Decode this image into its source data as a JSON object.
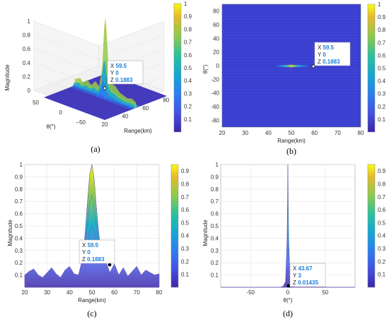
{
  "chart_data": [
    {
      "type": "surface3d",
      "caption": "(a)",
      "zlabel": "Magnitude",
      "xlabel": "Range(km)",
      "ylabel": "θ(°)",
      "x_ticks": [
        "20",
        "40",
        "60",
        "80"
      ],
      "y_ticks": [
        "50",
        "0",
        "−50"
      ],
      "z_ticks": [
        "0",
        "0.2",
        "0.4",
        "0.6",
        "0.8",
        "1"
      ],
      "colorbar_ticks": [
        "0.1",
        "0.2",
        "0.3",
        "0.4",
        "0.5",
        "0.6",
        "0.7",
        "0.8",
        "0.9",
        "1"
      ],
      "range_profile": {
        "x": [
          20,
          25,
          28,
          32,
          36,
          40,
          44,
          47,
          49,
          50,
          51,
          53,
          56,
          60,
          64,
          68,
          72,
          76,
          80
        ],
        "values": [
          0.08,
          0.12,
          0.07,
          0.13,
          0.08,
          0.15,
          0.1,
          0.35,
          0.9,
          1.0,
          0.85,
          0.4,
          0.2,
          0.18,
          0.12,
          0.1,
          0.08,
          0.1,
          0.07
        ]
      },
      "datatip": {
        "X": "59.5",
        "Y": "0",
        "Z": "0.1883"
      }
    },
    {
      "type": "heatmap",
      "caption": "(b)",
      "xlabel": "Range(km)",
      "ylabel": "θ(°)",
      "xlim": [
        20,
        80
      ],
      "ylim": [
        -90,
        90
      ],
      "x_ticks": [
        "20",
        "30",
        "40",
        "50",
        "60",
        "70",
        "80"
      ],
      "y_ticks": [
        "80",
        "60",
        "40",
        "20",
        "0",
        "-20",
        "-40",
        "-60",
        "-80"
      ],
      "colorbar_ticks": [
        "0.1",
        "0.2",
        "0.3",
        "0.4",
        "0.5",
        "0.6",
        "0.7",
        "0.8",
        "0.9",
        "1"
      ],
      "peak": {
        "x": 50,
        "y": 0,
        "value": 1.0
      },
      "datatip": {
        "X": "59.5",
        "Y": "0",
        "Z": "0.1883"
      }
    },
    {
      "type": "area",
      "caption": "(c)",
      "xlabel": "Range(km)",
      "ylabel": "Magnitude",
      "xlim": [
        20,
        80
      ],
      "ylim": [
        0,
        1
      ],
      "x_ticks": [
        "20",
        "30",
        "40",
        "50",
        "60",
        "70",
        "80"
      ],
      "y_ticks": [
        "0.1",
        "0.2",
        "0.3",
        "0.4",
        "0.5",
        "0.6",
        "0.7",
        "0.8",
        "0.9",
        "1"
      ],
      "colorbar_ticks": [
        "0.1",
        "0.2",
        "0.3",
        "0.4",
        "0.5",
        "0.6",
        "0.7",
        "0.8",
        "0.9"
      ],
      "x": [
        20,
        22,
        24,
        26,
        28,
        30,
        32,
        34,
        36,
        38,
        40,
        42,
        44,
        46,
        47,
        48,
        49,
        50,
        51,
        52,
        53,
        54,
        56,
        58,
        60,
        62,
        64,
        66,
        68,
        70,
        72,
        74,
        76,
        78,
        80
      ],
      "values": [
        0.1,
        0.13,
        0.15,
        0.1,
        0.08,
        0.12,
        0.16,
        0.11,
        0.08,
        0.14,
        0.17,
        0.11,
        0.1,
        0.25,
        0.45,
        0.7,
        0.92,
        1.0,
        0.88,
        0.65,
        0.45,
        0.28,
        0.22,
        0.12,
        0.19,
        0.1,
        0.16,
        0.09,
        0.13,
        0.17,
        0.1,
        0.14,
        0.12,
        0.1,
        0.11
      ],
      "datatip": {
        "X": "59.5",
        "Y": "0",
        "Z": "0.1883"
      }
    },
    {
      "type": "area",
      "caption": "(d)",
      "xlabel": "θ(°)",
      "ylabel": "Magnitude",
      "xlim": [
        -90,
        90
      ],
      "ylim": [
        0,
        1
      ],
      "x_ticks": [
        "-50",
        "0",
        "50"
      ],
      "y_ticks": [
        "0.1",
        "0.2",
        "0.3",
        "0.4",
        "0.5",
        "0.6",
        "0.7",
        "0.8",
        "0.9",
        "1"
      ],
      "colorbar_ticks": [
        "0.1",
        "0.2",
        "0.3",
        "0.4",
        "0.5",
        "0.6",
        "0.7",
        "0.8",
        "0.9"
      ],
      "x": [
        -90,
        -10,
        -6,
        -3,
        -1,
        0,
        1,
        3,
        6,
        10,
        90
      ],
      "values": [
        0,
        0,
        0.01,
        0.05,
        0.4,
        1.0,
        0.4,
        0.05,
        0.01,
        0,
        0
      ],
      "datatip": {
        "X": "43.67",
        "Y": "3",
        "Z": "0.01435"
      }
    }
  ]
}
